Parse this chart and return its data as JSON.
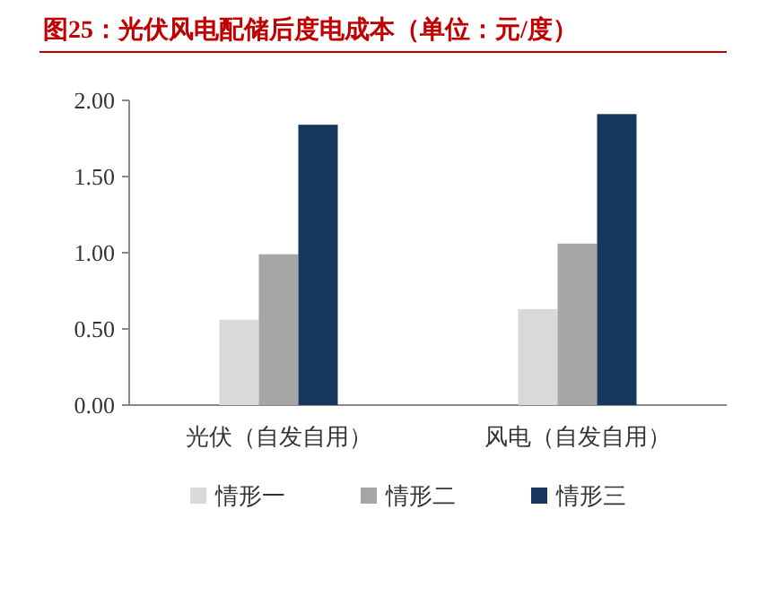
{
  "chart_data": {
    "type": "bar",
    "title": "图25：光伏风电配储后度电成本（单位：元/度）",
    "categories": [
      "光伏（自发自用）",
      "风电（自发自用）"
    ],
    "series": [
      {
        "name": "情形一",
        "color": "#d9d9d9",
        "values": [
          0.56,
          0.63
        ]
      },
      {
        "name": "情形二",
        "color": "#a6a6a6",
        "values": [
          0.99,
          1.06
        ]
      },
      {
        "name": "情形三",
        "color": "#17375e",
        "values": [
          1.84,
          1.91
        ]
      }
    ],
    "ylim": [
      0,
      2
    ],
    "yticks": [
      {
        "value": 0,
        "label": "0.00"
      },
      {
        "value": 0.5,
        "label": "0.50"
      },
      {
        "value": 1,
        "label": "1.00"
      },
      {
        "value": 1.5,
        "label": "1.50"
      },
      {
        "value": 2,
        "label": "2.00"
      }
    ],
    "legend": "bottom"
  }
}
